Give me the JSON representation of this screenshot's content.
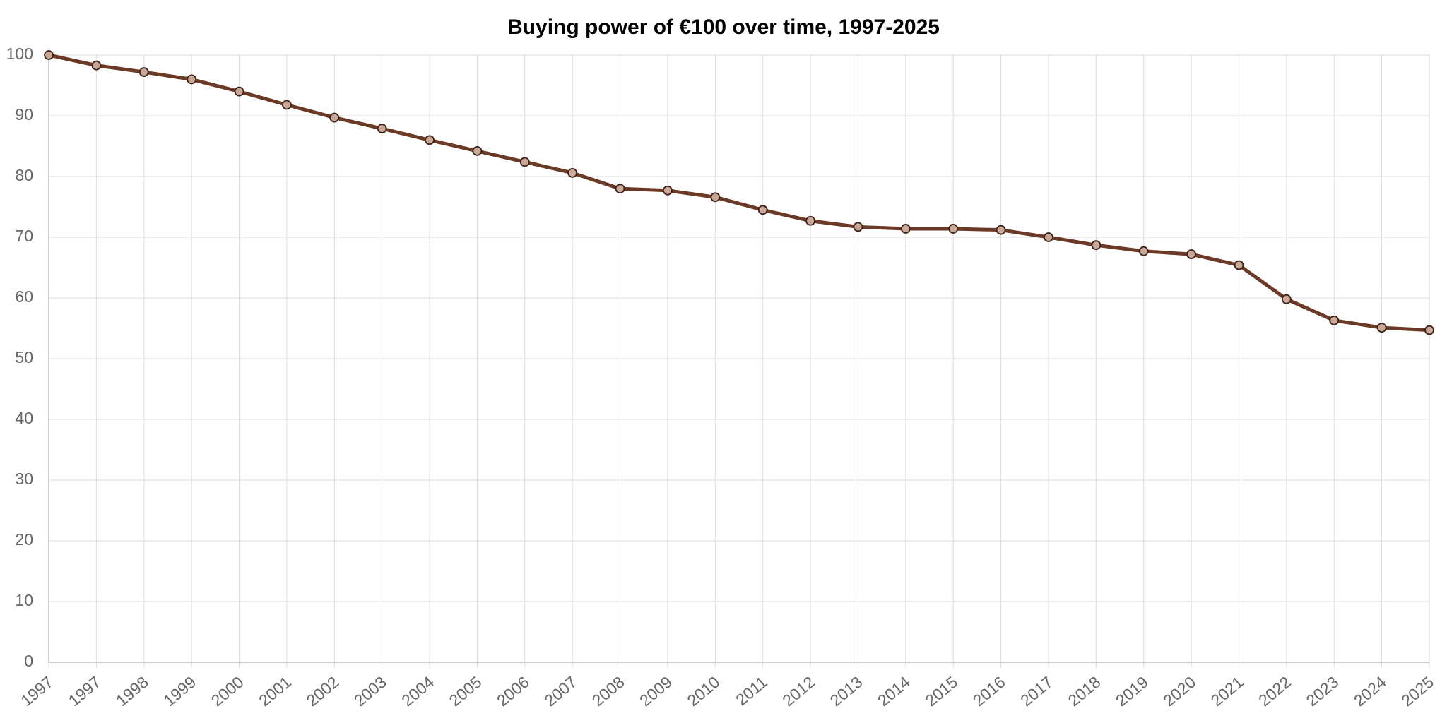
{
  "chart_data": {
    "type": "line",
    "title": "Buying power of €100 over time, 1997-2025",
    "categories": [
      "1997",
      "1997",
      "1998",
      "1999",
      "2000",
      "2001",
      "2002",
      "2003",
      "2004",
      "2005",
      "2006",
      "2007",
      "2008",
      "2009",
      "2010",
      "2011",
      "2012",
      "2013",
      "2014",
      "2015",
      "2016",
      "2017",
      "2018",
      "2019",
      "2020",
      "2021",
      "2022",
      "2023",
      "2024",
      "2025"
    ],
    "series": [
      {
        "name": "Buying power",
        "color": "#6b3a26",
        "values": [
          100,
          98.3,
          97.2,
          96.0,
          94.0,
          91.8,
          89.7,
          87.9,
          86.0,
          84.2,
          82.4,
          80.6,
          78.0,
          77.7,
          76.6,
          74.5,
          72.7,
          71.7,
          71.4,
          71.4,
          71.2,
          70.0,
          68.7,
          67.7,
          67.2,
          65.4,
          59.8,
          56.3,
          55.1,
          54.7
        ]
      }
    ],
    "ylim": [
      0,
      100
    ],
    "yticks": [
      0,
      10,
      20,
      30,
      40,
      50,
      60,
      70,
      80,
      90,
      100
    ],
    "grid": true
  }
}
